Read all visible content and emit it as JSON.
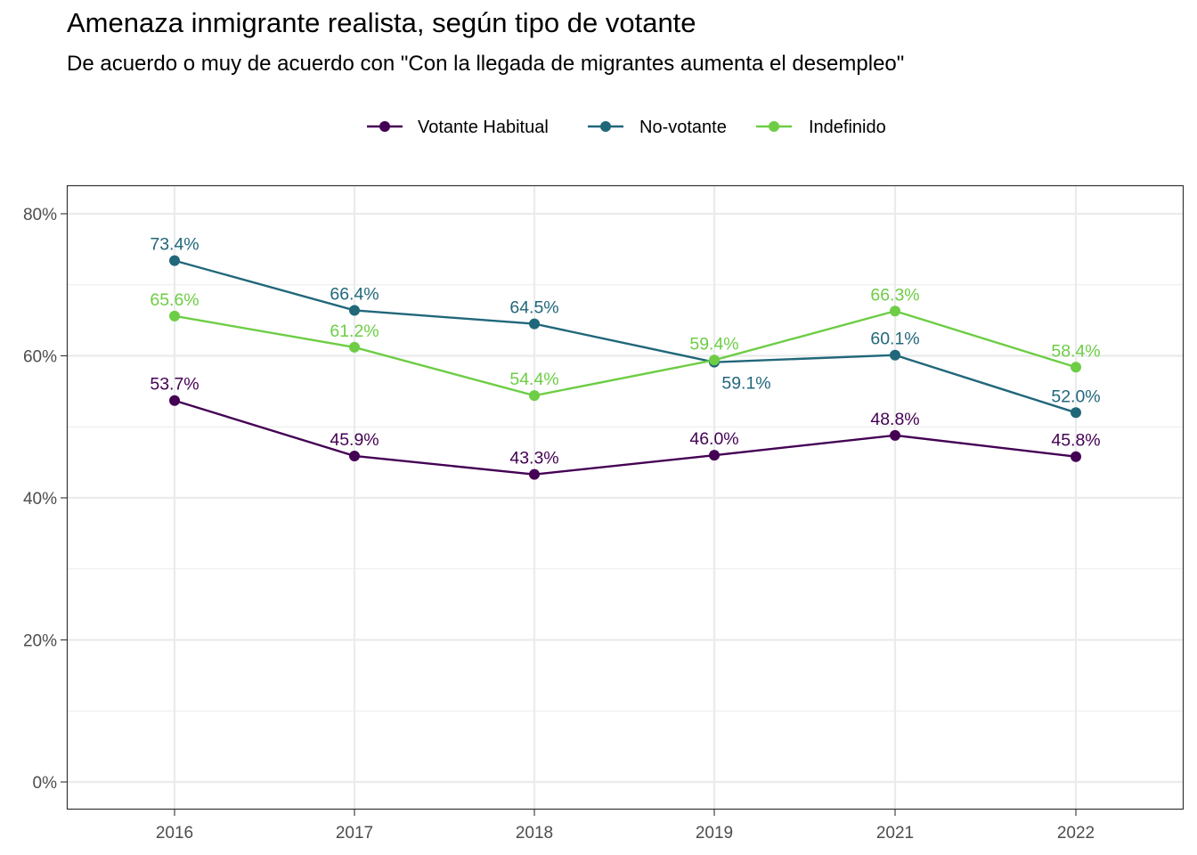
{
  "chart_data": {
    "type": "line",
    "title": "Amenaza inmigrante realista, según tipo de votante",
    "subtitle": "De acuerdo o muy de acuerdo con \"Con la llegada de migrantes aumenta el desempleo\"",
    "xlabel": "",
    "ylabel": "",
    "categories": [
      "2016",
      "2017",
      "2018",
      "2019",
      "2021",
      "2022"
    ],
    "ylim": [
      0,
      80
    ],
    "y_ticks": [
      0,
      20,
      40,
      60,
      80
    ],
    "y_tick_labels": [
      "0%",
      "20%",
      "40%",
      "60%",
      "80%"
    ],
    "grid": true,
    "legend_position": "top",
    "series": [
      {
        "name": "Votante Habitual",
        "color": "#440154",
        "values": [
          53.7,
          45.9,
          43.3,
          46.0,
          48.8,
          45.8
        ],
        "labels": [
          "53.7%",
          "45.9%",
          "43.3%",
          "46.0%",
          "48.8%",
          "45.8%"
        ]
      },
      {
        "name": "No-votante",
        "color": "#21677A",
        "values": [
          73.4,
          66.4,
          64.5,
          59.1,
          60.1,
          52.0
        ],
        "labels": [
          "73.4%",
          "66.4%",
          "64.5%",
          "59.1%",
          "60.1%",
          "52.0%"
        ]
      },
      {
        "name": "Indefinido",
        "color": "#6DCD45",
        "values": [
          65.6,
          61.2,
          54.4,
          59.4,
          66.3,
          58.4
        ],
        "labels": [
          "65.6%",
          "61.2%",
          "54.4%",
          "59.4%",
          "66.3%",
          "58.4%"
        ]
      }
    ]
  }
}
